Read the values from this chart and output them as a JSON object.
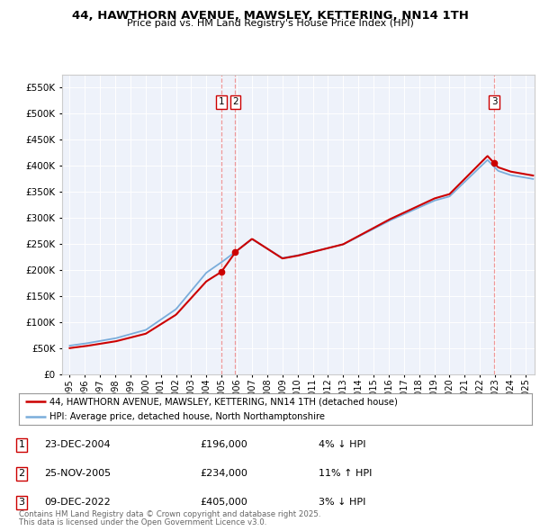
{
  "title": "44, HAWTHORN AVENUE, MAWSLEY, KETTERING, NN14 1TH",
  "subtitle": "Price paid vs. HM Land Registry's House Price Index (HPI)",
  "legend_line1": "44, HAWTHORN AVENUE, MAWSLEY, KETTERING, NN14 1TH (detached house)",
  "legend_line2": "HPI: Average price, detached house, North Northamptonshire",
  "footer1": "Contains HM Land Registry data © Crown copyright and database right 2025.",
  "footer2": "This data is licensed under the Open Government Licence v3.0.",
  "sale_points": [
    {
      "num": "1",
      "date": 2004.97,
      "price": 196000,
      "label": "23-DEC-2004",
      "amount": "£196,000",
      "change": "4% ↓ HPI"
    },
    {
      "num": "2",
      "date": 2005.9,
      "price": 234000,
      "label": "25-NOV-2005",
      "amount": "£234,000",
      "change": "11% ↑ HPI"
    },
    {
      "num": "3",
      "date": 2022.94,
      "price": 405000,
      "label": "09-DEC-2022",
      "amount": "£405,000",
      "change": "3% ↓ HPI"
    }
  ],
  "ylim": [
    0,
    575000
  ],
  "yticks": [
    0,
    50000,
    100000,
    150000,
    200000,
    250000,
    300000,
    350000,
    400000,
    450000,
    500000,
    550000
  ],
  "xlim": [
    1994.5,
    2025.6
  ],
  "property_color": "#cc0000",
  "hpi_color": "#7aaddb",
  "vline_color": "#ee8888",
  "background_color": "#eef2fa"
}
